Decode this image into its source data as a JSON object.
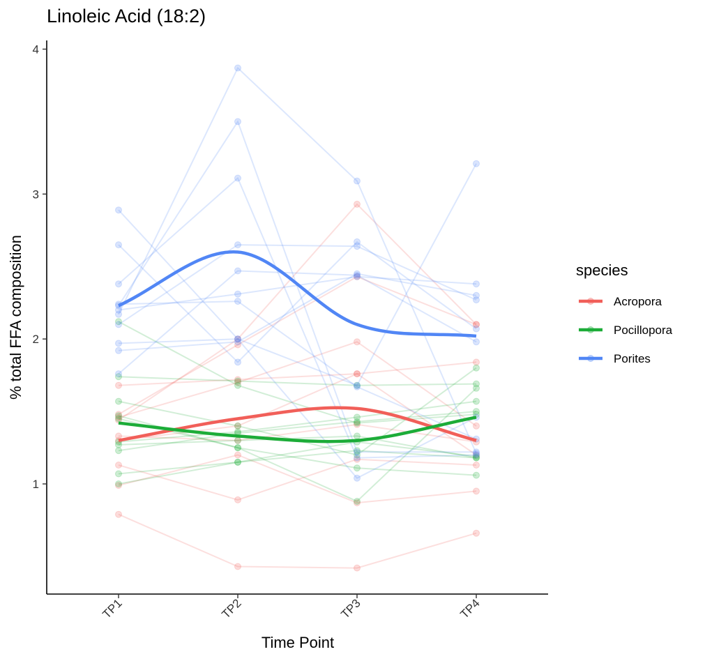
{
  "chart_data": {
    "type": "line",
    "title": "Linoleic Acid (18:2)",
    "xlabel": "Time Point",
    "ylabel": "% total FFA composition",
    "categories": [
      "TP1",
      "TP2",
      "TP3",
      "TP4"
    ],
    "ylim": [
      0.24,
      4.06
    ],
    "yticks": [
      1,
      2,
      3,
      4
    ],
    "grid": false,
    "legend": {
      "title": "species",
      "placement": "right"
    },
    "colors": {
      "Acropora": "#F15F59",
      "Pocillopora": "#1CAC38",
      "Porites": "#5186F5"
    },
    "series": [
      {
        "name": "Acropora",
        "smooth": [
          1.3,
          1.45,
          1.52,
          1.3
        ]
      },
      {
        "name": "Pocillopora",
        "smooth": [
          1.42,
          1.33,
          1.3,
          1.46
        ]
      },
      {
        "name": "Porites",
        "smooth": [
          2.23,
          2.6,
          2.1,
          2.02
        ]
      }
    ],
    "individuals": [
      {
        "species": "Acropora",
        "values": [
          0.79,
          0.43,
          0.42,
          0.66
        ]
      },
      {
        "species": "Acropora",
        "values": [
          0.99,
          1.2,
          0.87,
          0.95
        ]
      },
      {
        "species": "Acropora",
        "values": [
          1.13,
          0.89,
          1.17,
          1.13
        ]
      },
      {
        "species": "Acropora",
        "values": [
          1.33,
          1.3,
          1.41,
          1.29
        ]
      },
      {
        "species": "Acropora",
        "values": [
          1.44,
          2.0,
          2.93,
          2.1
        ]
      },
      {
        "species": "Acropora",
        "values": [
          1.46,
          1.7,
          1.98,
          1.4
        ]
      },
      {
        "species": "Acropora",
        "values": [
          1.68,
          1.72,
          1.76,
          1.84
        ]
      },
      {
        "species": "Acropora",
        "values": [
          1.48,
          1.96,
          2.43,
          2.1
        ]
      },
      {
        "species": "Acropora",
        "values": [
          1.3,
          1.4,
          1.76,
          1.2
        ]
      },
      {
        "species": "Pocillopora",
        "values": [
          1.0,
          1.15,
          1.29,
          1.19
        ]
      },
      {
        "species": "Pocillopora",
        "values": [
          1.07,
          1.15,
          1.23,
          1.18
        ]
      },
      {
        "species": "Pocillopora",
        "values": [
          1.23,
          1.35,
          1.43,
          1.5
        ]
      },
      {
        "species": "Pocillopora",
        "values": [
          1.27,
          1.3,
          1.33,
          1.18
        ]
      },
      {
        "species": "Pocillopora",
        "values": [
          1.29,
          1.36,
          1.46,
          1.57
        ]
      },
      {
        "species": "Pocillopora",
        "values": [
          1.45,
          1.25,
          1.11,
          1.06
        ]
      },
      {
        "species": "Pocillopora",
        "values": [
          1.47,
          1.25,
          0.88,
          1.66
        ]
      },
      {
        "species": "Pocillopora",
        "values": [
          1.57,
          1.4,
          1.2,
          1.8
        ]
      },
      {
        "species": "Pocillopora",
        "values": [
          1.74,
          1.71,
          1.68,
          1.69
        ]
      },
      {
        "species": "Pocillopora",
        "values": [
          2.12,
          1.68,
          1.42,
          1.48
        ]
      },
      {
        "species": "Porites",
        "values": [
          1.76,
          2.47,
          2.44,
          1.98
        ]
      },
      {
        "species": "Porites",
        "values": [
          1.92,
          1.98,
          2.45,
          2.3
        ]
      },
      {
        "species": "Porites",
        "values": [
          1.97,
          2.0,
          1.04,
          1.46
        ]
      },
      {
        "species": "Porites",
        "values": [
          2.1,
          2.65,
          2.64,
          2.27
        ]
      },
      {
        "species": "Porites",
        "values": [
          2.2,
          2.31,
          2.43,
          2.38
        ]
      },
      {
        "species": "Porites",
        "values": [
          2.24,
          2.26,
          1.67,
          1.31
        ]
      },
      {
        "species": "Porites",
        "values": [
          2.38,
          3.11,
          1.18,
          1.2
        ]
      },
      {
        "species": "Porites",
        "values": [
          2.65,
          1.84,
          2.67,
          2.07
        ]
      },
      {
        "species": "Porites",
        "values": [
          2.89,
          2.0,
          1.68,
          3.21
        ]
      },
      {
        "species": "Porites",
        "values": [
          2.17,
          3.87,
          3.09,
          1.21
        ]
      },
      {
        "species": "Porites",
        "values": [
          2.23,
          3.5,
          1.22,
          1.22
        ]
      }
    ]
  }
}
